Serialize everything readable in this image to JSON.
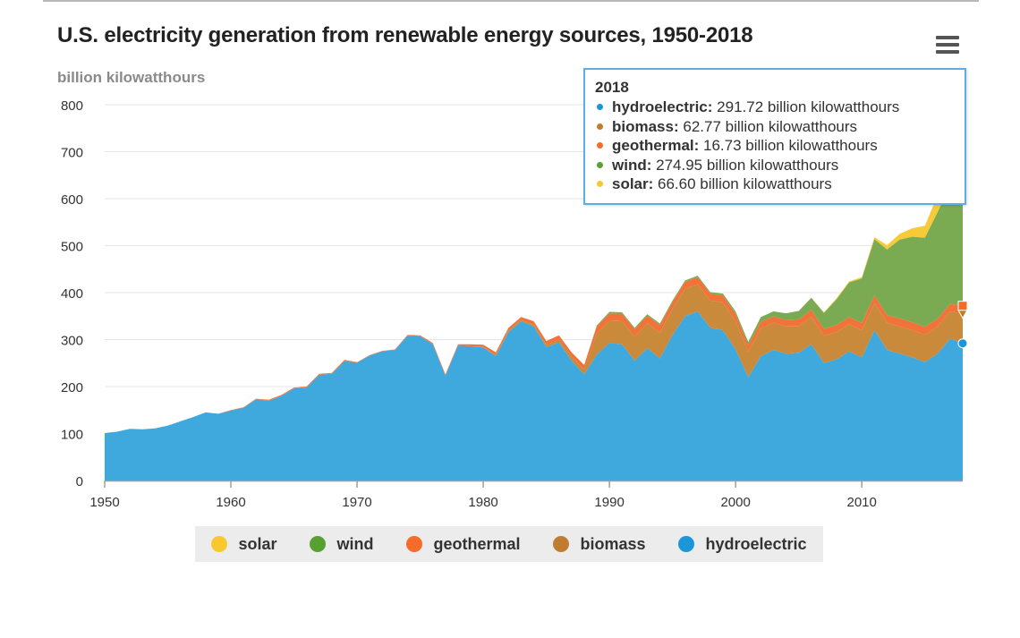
{
  "title": "U.S. electricity generation from renewable energy sources, 1950-2018",
  "unit_label": "billion kilowatthours",
  "menu_icon": "hamburger-menu-icon",
  "colors": {
    "hydroelectric": "#3fa8dd",
    "biomass": "#c98a3b",
    "geothermal": "#f1733a",
    "wind": "#7aab53",
    "solar": "#f7cb37",
    "grid": "#e6e6e6"
  },
  "legend": [
    {
      "name": "solar",
      "color": "#f7c92f"
    },
    {
      "name": "wind",
      "color": "#57a031"
    },
    {
      "name": "geothermal",
      "color": "#f66b2a"
    },
    {
      "name": "biomass",
      "color": "#c07c31"
    },
    {
      "name": "hydroelectric",
      "color": "#1a96d9"
    }
  ],
  "tooltip": {
    "title": "2018",
    "rows": [
      {
        "name": "hydroelectric:",
        "value": " 291.72 billion kilowatthours",
        "color": "#1a96d9"
      },
      {
        "name": "biomass:",
        "value": " 62.77 billion kilowatthours",
        "color": "#c07c31"
      },
      {
        "name": "geothermal:",
        "value": " 16.73 billion kilowatthours",
        "color": "#f66b2a"
      },
      {
        "name": "wind:",
        "value": " 274.95 billion kilowatthours",
        "color": "#57a031"
      },
      {
        "name": "solar:",
        "value": " 66.60 billion kilowatthours",
        "color": "#f7c92f"
      }
    ]
  },
  "chart_data": {
    "type": "area",
    "stacked": true,
    "title": "U.S. electricity generation from renewable energy sources, 1950-2018",
    "ylabel": "billion kilowatthours",
    "xlabel": "",
    "xlim": [
      1950,
      2018
    ],
    "ylim": [
      0,
      800
    ],
    "x_ticks": [
      1950,
      1960,
      1970,
      1980,
      1990,
      2000,
      2010
    ],
    "y_ticks": [
      0,
      100,
      200,
      300,
      400,
      500,
      600,
      700,
      800
    ],
    "grid": true,
    "legend_position": "bottom",
    "x": [
      1950,
      1951,
      1952,
      1953,
      1954,
      1955,
      1956,
      1957,
      1958,
      1959,
      1960,
      1961,
      1962,
      1963,
      1964,
      1965,
      1966,
      1967,
      1968,
      1969,
      1970,
      1971,
      1972,
      1973,
      1974,
      1975,
      1976,
      1977,
      1978,
      1979,
      1980,
      1981,
      1982,
      1983,
      1984,
      1985,
      1986,
      1987,
      1988,
      1989,
      1990,
      1991,
      1992,
      1993,
      1994,
      1995,
      1996,
      1997,
      1998,
      1999,
      2000,
      2001,
      2002,
      2003,
      2004,
      2005,
      2006,
      2007,
      2008,
      2009,
      2010,
      2011,
      2012,
      2013,
      2014,
      2015,
      2016,
      2017,
      2018
    ],
    "series": [
      {
        "name": "hydroelectric",
        "values": [
          101,
          104,
          110,
          109,
          111,
          117,
          126,
          135,
          145,
          142,
          149,
          155,
          173,
          170,
          180,
          196,
          198,
          225,
          227,
          254,
          251,
          266,
          275,
          278,
          308,
          307,
          290,
          223,
          287,
          286,
          283,
          265,
          316,
          339,
          328,
          284,
          294,
          255,
          226,
          268,
          293,
          290,
          255,
          282,
          260,
          310,
          350,
          360,
          325,
          320,
          279,
          220,
          265,
          278,
          270,
          272,
          290,
          250,
          258,
          275,
          262,
          320,
          278,
          270,
          262,
          252,
          270,
          302,
          292
        ]
      },
      {
        "name": "biomass",
        "values": [
          0,
          0,
          0,
          0,
          0,
          0,
          0,
          0,
          0,
          0,
          0,
          0,
          0,
          0,
          0,
          0,
          0,
          0,
          0,
          0,
          0,
          0,
          0,
          0,
          0,
          0,
          0,
          0,
          0,
          0,
          1,
          2,
          3,
          3,
          4,
          5,
          6,
          8,
          10,
          45,
          47,
          49,
          51,
          53,
          55,
          56,
          58,
          58,
          58,
          59,
          60,
          54,
          59,
          58,
          58,
          56,
          58,
          58,
          58,
          58,
          58,
          58,
          58,
          58,
          58,
          58,
          58,
          58,
          63
        ]
      },
      {
        "name": "geothermal",
        "values": [
          0,
          0,
          0,
          0,
          0,
          0,
          0,
          0,
          0,
          0,
          1,
          1,
          1,
          2,
          2,
          2,
          2,
          2,
          2,
          3,
          1,
          1,
          1,
          1,
          2,
          2,
          3,
          3,
          3,
          4,
          5,
          6,
          6,
          6,
          7,
          8,
          9,
          10,
          10,
          15,
          16,
          16,
          16,
          16,
          16,
          14,
          15,
          15,
          15,
          15,
          15,
          14,
          14,
          13,
          14,
          15,
          15,
          15,
          15,
          15,
          15,
          16,
          16,
          17,
          17,
          17,
          16,
          16,
          17
        ]
      },
      {
        "name": "wind",
        "values": [
          0,
          0,
          0,
          0,
          0,
          0,
          0,
          0,
          0,
          0,
          0,
          0,
          0,
          0,
          0,
          0,
          0,
          0,
          0,
          0,
          0,
          0,
          0,
          0,
          0,
          0,
          0,
          0,
          0,
          0,
          0,
          0,
          0,
          0,
          0,
          0,
          0,
          0,
          0,
          2,
          3,
          3,
          3,
          3,
          3,
          3,
          3,
          3,
          3,
          4,
          6,
          7,
          10,
          11,
          14,
          18,
          26,
          34,
          55,
          74,
          95,
          120,
          140,
          168,
          182,
          190,
          227,
          254,
          275
        ]
      },
      {
        "name": "solar",
        "values": [
          0,
          0,
          0,
          0,
          0,
          0,
          0,
          0,
          0,
          0,
          0,
          0,
          0,
          0,
          0,
          0,
          0,
          0,
          0,
          0,
          0,
          0,
          0,
          0,
          0,
          0,
          0,
          0,
          0,
          0,
          0,
          0,
          0,
          0,
          0,
          0,
          0,
          0,
          0,
          0,
          0,
          0,
          0,
          0,
          0,
          0,
          0,
          0,
          0,
          0,
          0,
          0,
          0,
          0,
          0,
          0,
          0,
          1,
          2,
          2,
          3,
          4,
          9,
          12,
          18,
          25,
          36,
          53,
          67
        ]
      }
    ]
  }
}
